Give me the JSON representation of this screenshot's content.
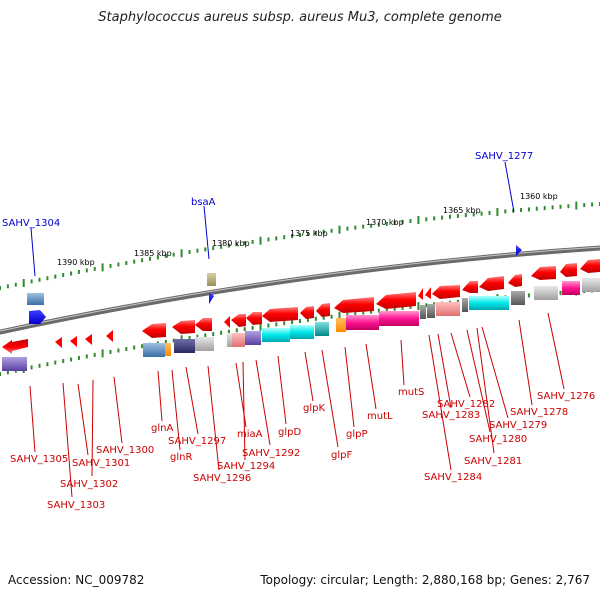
{
  "title": "Staphylococcus aureus subsp. aureus Mu3, complete genome",
  "footer": {
    "accession": "Accession: NC_009782",
    "summary": "Topology: circular; Length: 2,880,168 bp; Genes: 2,767"
  },
  "scale_labels": [
    "1390 kbp",
    "1385 kbp",
    "1380 kbp",
    "1375 kbp",
    "1370 kbp",
    "1365 kbp",
    "1360 kbp"
  ],
  "top_labels": [
    "SAHV_1304",
    "bsaA",
    "SAHV_1277"
  ],
  "bottom_labels": [
    "SAHV_1305",
    "SAHV_1301",
    "SAHV_1300",
    "SAHV_1302",
    "SAHV_1303",
    "glnA",
    "SAHV_1297",
    "glnR",
    "miaA",
    "SAHV_1294",
    "SAHV_1296",
    "SAHV_1292",
    "glpD",
    "glpK",
    "glpF",
    "glpP",
    "mutL",
    "mutS",
    "SAHV_1282",
    "SAHV_1283",
    "SAHV_1284",
    "SAHV_1281",
    "SAHV_1280",
    "SAHV_1279",
    "SAHV_1278",
    "SAHV_1276"
  ],
  "colors": {
    "backbone": "#888888",
    "forward_gene": "#ff0000",
    "tick": "#2e8b2e",
    "top_label": "#0000cc",
    "bottom_label": "#cc0000"
  }
}
